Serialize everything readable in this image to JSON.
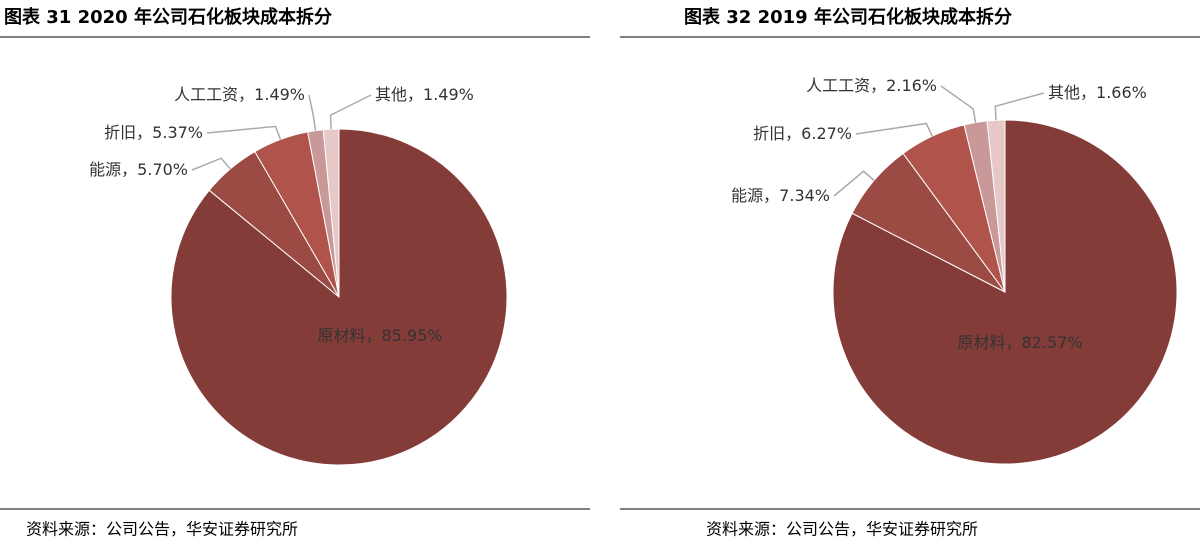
{
  "chart_data": [
    {
      "type": "pie",
      "title": "图表 31  2020 年公司石化板块成本拆分",
      "categories": [
        "原材料",
        "能源",
        "折旧",
        "人工工资",
        "其他"
      ],
      "values": [
        85.95,
        5.7,
        5.37,
        1.49,
        1.49
      ],
      "value_labels": [
        "85.95%",
        "5.70%",
        "5.37%",
        "1.49%",
        "1.49%"
      ],
      "label_separator": "，",
      "colors": [
        "#843c39",
        "#9b4a44",
        "#b0534b",
        "#c9999a",
        "#e6c8c8"
      ],
      "source": "资料来源：公司公告，华安证券研究所"
    },
    {
      "type": "pie",
      "title": "图表 32  2019 年公司石化板块成本拆分",
      "categories": [
        "原材料",
        "能源",
        "折旧",
        "人工工资",
        "其他"
      ],
      "values": [
        82.57,
        7.34,
        6.27,
        2.16,
        1.66
      ],
      "value_labels": [
        "82.57%",
        "7.34%",
        "6.27%",
        "2.16%",
        "1.66%"
      ],
      "label_separator": "，",
      "colors": [
        "#843c39",
        "#9b4a44",
        "#b0534b",
        "#c9999a",
        "#e6c8c8"
      ],
      "source": "资料来源：公司公告，华安证券研究所"
    }
  ]
}
